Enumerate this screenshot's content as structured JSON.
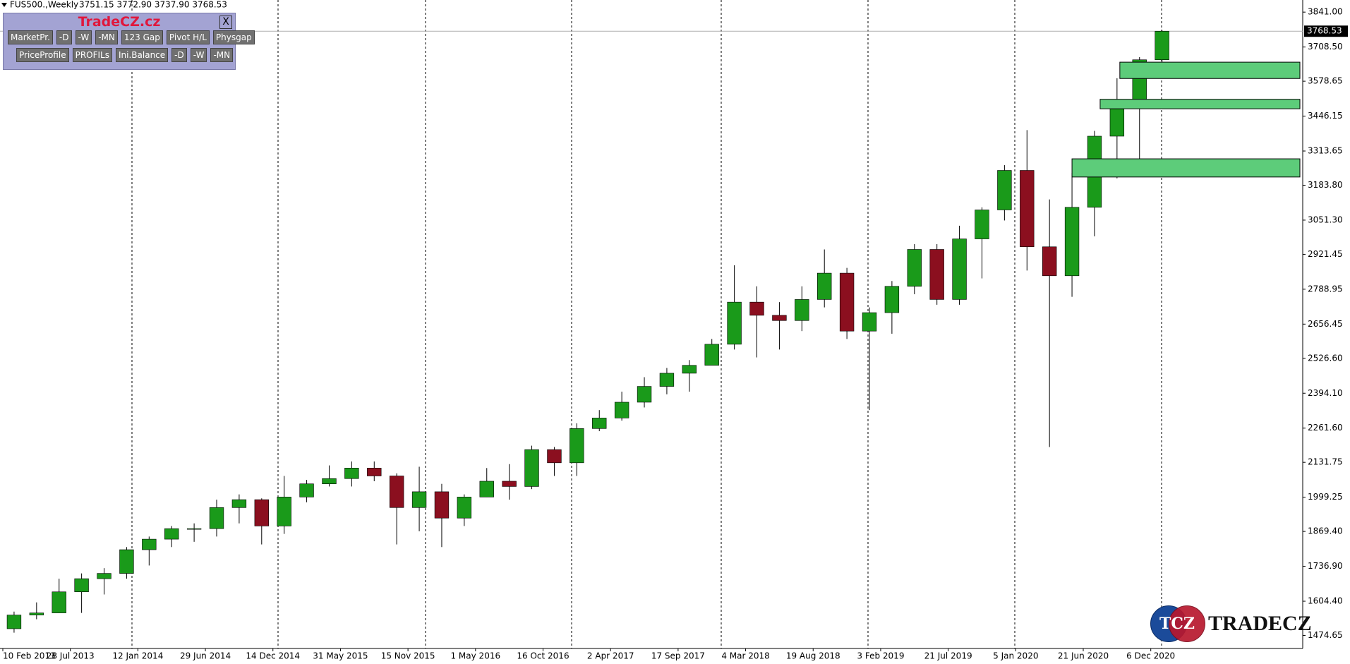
{
  "chart_data": {
    "type": "candlestick",
    "title": "FUS500.,Weekly",
    "header_quote": "3751.15 3772.90 3737.90 3768.53",
    "x": [
      "2013-02-10",
      "2013-04-07",
      "2013-06-02",
      "2013-07-28",
      "2013-09-22",
      "2013-11-17",
      "2014-01-12",
      "2014-03-09",
      "2014-05-04",
      "2014-06-29",
      "2014-08-24",
      "2014-10-19",
      "2014-12-14",
      "2015-02-08",
      "2015-04-05",
      "2015-05-31",
      "2015-07-26",
      "2015-09-20",
      "2015-11-15",
      "2016-01-10",
      "2016-03-06",
      "2016-05-01",
      "2016-06-26",
      "2016-08-21",
      "2016-10-16",
      "2016-12-11",
      "2017-02-05",
      "2017-04-02",
      "2017-05-28",
      "2017-07-23",
      "2017-09-17",
      "2017-11-12",
      "2018-01-07",
      "2018-03-04",
      "2018-04-29",
      "2018-06-24",
      "2018-08-19",
      "2018-10-14",
      "2018-12-09",
      "2019-02-03",
      "2019-03-31",
      "2019-05-26",
      "2019-07-21",
      "2019-09-15",
      "2019-11-10",
      "2020-01-05",
      "2020-03-01",
      "2020-04-26",
      "2020-06-21",
      "2020-08-16",
      "2020-10-11",
      "2020-12-06"
    ],
    "open": [
      1500,
      1552,
      1560,
      1640,
      1690,
      1710,
      1800,
      1840,
      1880,
      1880,
      1960,
      1990,
      1890,
      2000,
      2050,
      2070,
      2110,
      2080,
      1960,
      2020,
      1920,
      2000,
      2060,
      2040,
      2180,
      2130,
      2260,
      2300,
      2360,
      2420,
      2470,
      2500,
      2580,
      2740,
      2690,
      2670,
      2750,
      2850,
      2630,
      2700,
      2800,
      2940,
      2750,
      2980,
      3090,
      3240,
      2950,
      2840,
      3100,
      3370,
      3480,
      3660
    ],
    "high": [
      1565,
      1600,
      1690,
      1710,
      1730,
      1810,
      1850,
      1890,
      1900,
      1990,
      2010,
      1995,
      2080,
      2065,
      2120,
      2135,
      2135,
      2090,
      2115,
      2050,
      2010,
      2110,
      2125,
      2195,
      2190,
      2280,
      2330,
      2400,
      2455,
      2490,
      2520,
      2600,
      2880,
      2800,
      2740,
      2800,
      2940,
      2870,
      2720,
      2820,
      2960,
      2960,
      3030,
      3100,
      3260,
      3393,
      3130,
      3230,
      3390,
      3590,
      3670,
      3772.9
    ],
    "low": [
      1485,
      1536,
      1560,
      1560,
      1630,
      1690,
      1740,
      1810,
      1830,
      1850,
      1900,
      1820,
      1860,
      1980,
      2040,
      2040,
      2060,
      1820,
      1870,
      1810,
      1890,
      2000,
      1990,
      2030,
      2080,
      2080,
      2250,
      2290,
      2340,
      2390,
      2400,
      2500,
      2560,
      2530,
      2560,
      2630,
      2720,
      2600,
      2330,
      2620,
      2770,
      2730,
      2730,
      2830,
      3050,
      2860,
      2190,
      2760,
      2990,
      3210,
      3280,
      3620
    ],
    "close": [
      1552,
      1560,
      1640,
      1690,
      1710,
      1800,
      1840,
      1880,
      1880,
      1960,
      1990,
      1890,
      2000,
      2050,
      2070,
      2110,
      2080,
      1960,
      2020,
      1920,
      2000,
      2060,
      2040,
      2180,
      2130,
      2260,
      2300,
      2360,
      2420,
      2470,
      2500,
      2580,
      2740,
      2690,
      2670,
      2750,
      2850,
      2630,
      2700,
      2800,
      2940,
      2750,
      2980,
      3090,
      3240,
      2950,
      2840,
      3100,
      3370,
      3480,
      3660,
      3768.53
    ],
    "up_color": "#1a9a1a",
    "down_color": "#8b0f1f",
    "wick_color": "#000000",
    "current_price": 3768.53,
    "zones": [
      {
        "from": "2020-09-20",
        "low": 3589,
        "high": 3651
      },
      {
        "from": "2020-08-02",
        "low": 3474,
        "high": 3510
      },
      {
        "from": "2020-05-24",
        "low": 3215,
        "high": 3284
      }
    ],
    "zone_color": "#5dcc7a",
    "xlim": [
      "2013-02-03",
      "2021-12-19"
    ],
    "xticks": [
      {
        "value": "2013-02-10",
        "label": "10 Feb 2013"
      },
      {
        "value": "2013-07-28",
        "label": "28 Jul 2013"
      },
      {
        "value": "2014-01-12",
        "label": "12 Jan 2014"
      },
      {
        "value": "2014-06-29",
        "label": "29 Jun 2014"
      },
      {
        "value": "2014-12-14",
        "label": "14 Dec 2014"
      },
      {
        "value": "2015-05-31",
        "label": "31 May 2015"
      },
      {
        "value": "2015-11-15",
        "label": "15 Nov 2015"
      },
      {
        "value": "2016-05-01",
        "label": "1 May 2016"
      },
      {
        "value": "2016-10-16",
        "label": "16 Oct 2016"
      },
      {
        "value": "2017-04-02",
        "label": "2 Apr 2017"
      },
      {
        "value": "2017-09-17",
        "label": "17 Sep 2017"
      },
      {
        "value": "2018-03-04",
        "label": "4 Mar 2018"
      },
      {
        "value": "2018-08-19",
        "label": "19 Aug 2018"
      },
      {
        "value": "2019-02-03",
        "label": "3 Feb 2019"
      },
      {
        "value": "2019-07-21",
        "label": "21 Jul 2019"
      },
      {
        "value": "2020-01-05",
        "label": "5 Jan 2020"
      },
      {
        "value": "2020-06-21",
        "label": "21 Jun 2020"
      },
      {
        "value": "2020-12-06",
        "label": "6 Dec 2020"
      }
    ],
    "ylim": [
      1425,
      3887
    ],
    "yticks": [
      {
        "value": 3841,
        "label": "3841.00"
      },
      {
        "value": 3708.5,
        "label": "3708.50"
      },
      {
        "value": 3578.65,
        "label": "3578.65"
      },
      {
        "value": 3446.15,
        "label": "3446.15"
      },
      {
        "value": 3313.65,
        "label": "3313.65"
      },
      {
        "value": 3183.8,
        "label": "3183.80"
      },
      {
        "value": 3051.3,
        "label": "3051.30"
      },
      {
        "value": 2921.45,
        "label": "2921.45"
      },
      {
        "value": 2788.95,
        "label": "2788.95"
      },
      {
        "value": 2656.45,
        "label": "2656.45"
      },
      {
        "value": 2526.6,
        "label": "2526.60"
      },
      {
        "value": 2394.1,
        "label": "2394.10"
      },
      {
        "value": 2261.6,
        "label": "2261.60"
      },
      {
        "value": 2131.75,
        "label": "2131.75"
      },
      {
        "value": 1999.25,
        "label": "1999.25"
      },
      {
        "value": 1869.4,
        "label": "1869.40"
      },
      {
        "value": 1736.9,
        "label": "1736.90"
      },
      {
        "value": 1604.4,
        "label": "1604.40"
      },
      {
        "value": 1474.65,
        "label": "1474.65"
      }
    ]
  },
  "panel": {
    "title": "TradeCZ.cz",
    "close": "X",
    "row1": [
      "MarketPr.",
      "-D",
      "-W",
      "-MN",
      "123 Gap",
      "Pivot H/L",
      "Physgap"
    ],
    "row2": [
      "PriceProfile",
      "PROFILs",
      "Ini.Balance",
      "-D",
      "-W",
      "-MN"
    ]
  },
  "logo": {
    "mark": "TCZ",
    "text": "TRADECZ"
  }
}
